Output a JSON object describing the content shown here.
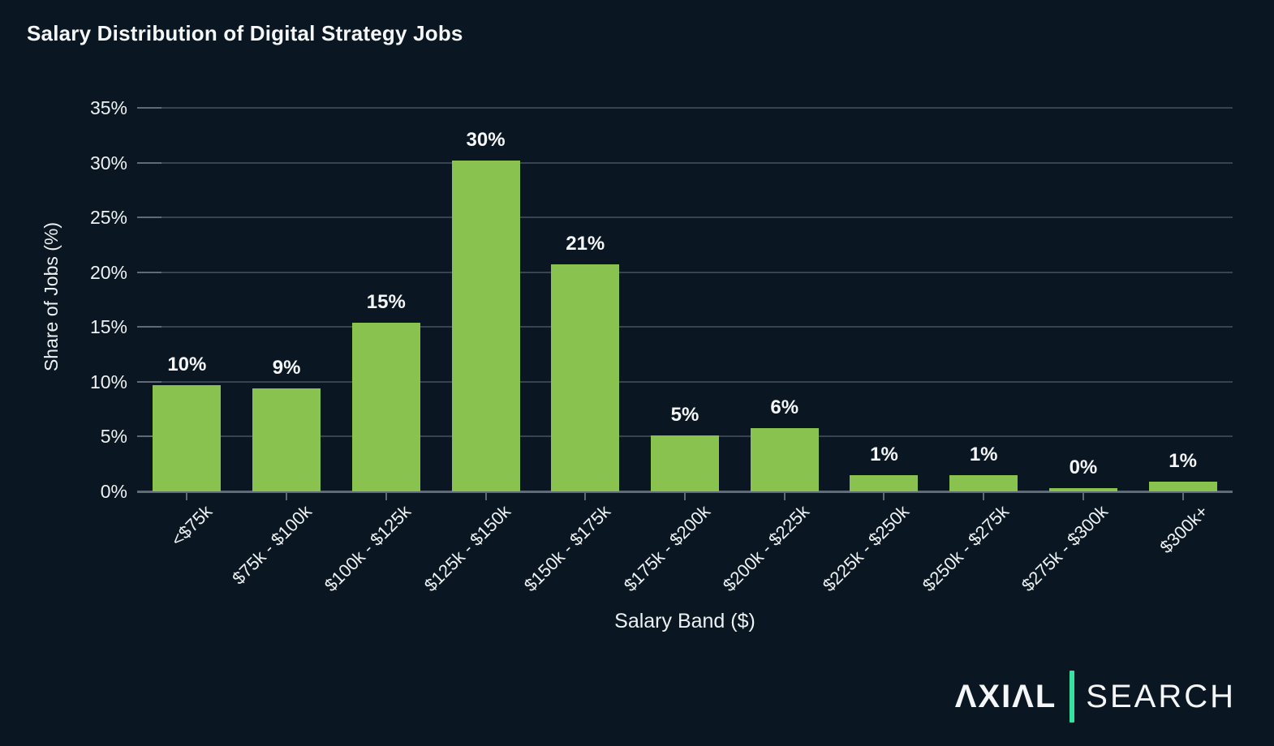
{
  "page": {
    "background": "#0a1621"
  },
  "chart_data": {
    "type": "bar",
    "title": "Salary Distribution of Digital Strategy Jobs",
    "xlabel": "Salary Band ($)",
    "ylabel": "Share of Jobs (%)",
    "categories": [
      "<$75k",
      "$75k - $100k",
      "$100k - $125k",
      "$125k - $150k",
      "$150k - $175k",
      "$175k - $200k",
      "$200k - $225k",
      "$225k - $250k",
      "$250k - $275k",
      "$275k - $300k",
      "$300k+"
    ],
    "values": [
      9.7,
      9.4,
      15.4,
      30.2,
      20.7,
      5.1,
      5.8,
      1.5,
      1.5,
      0.3,
      0.9
    ],
    "value_labels": [
      "10%",
      "9%",
      "15%",
      "30%",
      "21%",
      "5%",
      "6%",
      "1%",
      "1%",
      "0%",
      "1%"
    ],
    "ylim": [
      0,
      35
    ],
    "ytick_step": 5,
    "ytick_labels": [
      "0%",
      "5%",
      "10%",
      "15%",
      "20%",
      "25%",
      "30%",
      "35%"
    ],
    "grid": true,
    "legend": false,
    "bar_color": "#89c24f",
    "grid_color": "#37434f",
    "axis_color": "#5f6c78",
    "text_color": "#eef1f2"
  },
  "branding": {
    "brand_primary": "AXIAL",
    "brand_primary_display": "ΛXIΛL",
    "brand_secondary": "SEARCH",
    "divider_color": "#36e2a1"
  }
}
